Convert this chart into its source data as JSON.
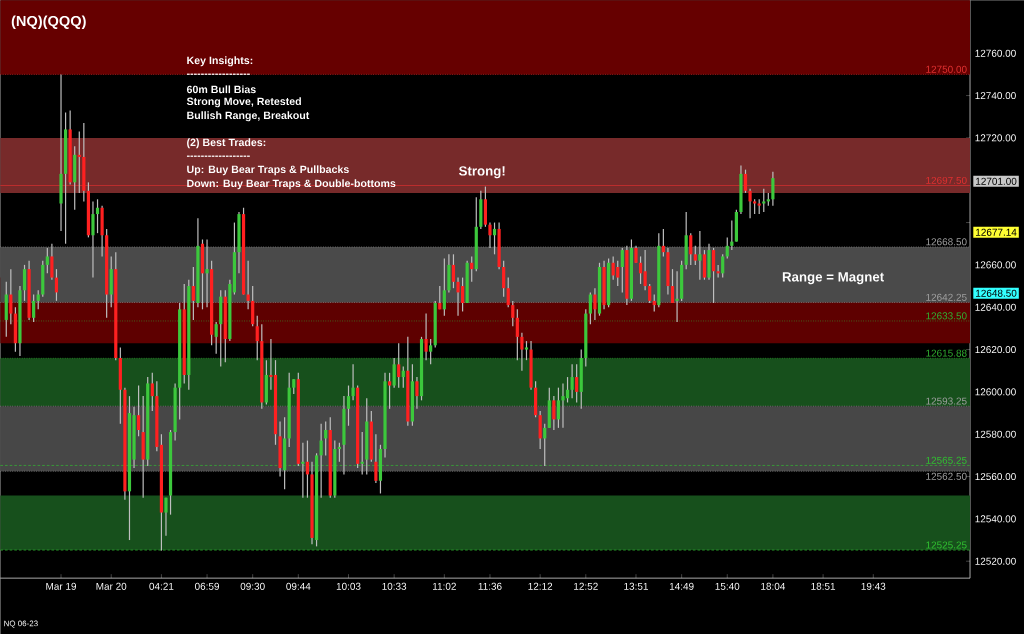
{
  "chart_data": {
    "type": "candlestick",
    "title": "(NQ)(QQQ)",
    "categories": [
      null,
      null,
      null,
      null,
      null,
      null,
      null,
      null,
      null,
      null,
      null,
      null,
      "Mar 19",
      null,
      null,
      null,
      null,
      null,
      null,
      null,
      null,
      null,
      null,
      "Mar 20",
      null,
      null,
      null,
      null,
      null,
      null,
      null,
      null,
      null,
      null,
      "04:21",
      null,
      null,
      null,
      null,
      null,
      null,
      null,
      null,
      null,
      "06:59",
      null,
      null,
      null,
      null,
      null,
      null,
      null,
      null,
      null,
      "09:30",
      null,
      null,
      null,
      null,
      null,
      null,
      null,
      null,
      null,
      "09:44",
      null,
      null,
      null,
      null,
      null,
      null,
      null,
      null,
      null,
      null,
      "10:03",
      null,
      null,
      null,
      null,
      null,
      null,
      null,
      null,
      null,
      "10:33",
      null,
      null,
      null,
      null,
      null,
      null,
      null,
      null,
      null,
      null,
      "11:02",
      null,
      null,
      null,
      null,
      null,
      null,
      null,
      null,
      null,
      "11:36",
      null,
      null,
      null,
      null,
      null,
      null,
      null,
      null,
      null,
      null,
      "12:12",
      null,
      null,
      null,
      null,
      null,
      null,
      null,
      null,
      null,
      "12:52",
      null,
      null,
      null,
      null,
      null,
      null,
      null,
      null,
      null,
      null,
      "13:51",
      null,
      null,
      null,
      null,
      null,
      null,
      null,
      null,
      null,
      "14:49",
      null,
      null,
      null,
      null,
      null,
      null,
      null,
      null,
      null,
      "15:40",
      null,
      null,
      null,
      null,
      null,
      null,
      null,
      null,
      null,
      "18:04",
      null,
      null,
      null,
      null,
      null,
      null,
      null,
      null,
      null,
      null,
      "18:51",
      null,
      null,
      null,
      null,
      null,
      null,
      null,
      null,
      null,
      null,
      "19:43",
      null,
      null,
      null,
      null,
      null,
      null,
      null,
      null,
      null,
      null,
      null,
      null,
      null,
      null,
      null,
      null,
      null,
      null,
      null,
      null,
      null
    ],
    "ohlc": [
      [
        12634,
        12652,
        12626,
        12646
      ],
      [
        12646,
        12658,
        12632,
        12637
      ],
      [
        12637,
        12640,
        12619,
        12623
      ],
      [
        12623,
        12650,
        12617,
        12648
      ],
      [
        12648,
        12660,
        12643,
        12658
      ],
      [
        12658,
        12662,
        12634,
        12635
      ],
      [
        12635,
        12646,
        12633,
        12643
      ],
      [
        12643,
        12648,
        12639,
        12646
      ],
      [
        12646,
        12662,
        12645,
        12660
      ],
      [
        12660,
        12668,
        12656,
        12664
      ],
      [
        12664,
        12670,
        12653,
        12654
      ],
      [
        12654,
        12658,
        12643,
        12647
      ],
      [
        12689,
        12750,
        12676,
        12703
      ],
      [
        12703,
        12732,
        12670,
        12724
      ],
      [
        12724,
        12733,
        12698,
        12699
      ],
      [
        12699,
        12716,
        12686,
        12712
      ],
      [
        12712,
        12723,
        12694,
        12711
      ],
      [
        12711,
        12727,
        12690,
        12695
      ],
      [
        12695,
        12699,
        12673,
        12674
      ],
      [
        12674,
        12690,
        12654,
        12684
      ],
      [
        12684,
        12691,
        12675,
        12687
      ],
      [
        12687,
        12688,
        12664,
        12674
      ],
      [
        12674,
        12677,
        12635,
        12646
      ],
      [
        12646,
        12664,
        12640,
        12658
      ],
      [
        12658,
        12666,
        12615,
        12616
      ],
      [
        12616,
        12621,
        12585,
        12601
      ],
      [
        12601,
        12602,
        12549,
        12553
      ],
      [
        12553,
        12598,
        12530,
        12590
      ],
      [
        12568,
        12593,
        12564,
        12589
      ],
      [
        12589,
        12603,
        12579,
        12582
      ],
      [
        12581,
        12598,
        12550,
        12568
      ],
      [
        12568,
        12607,
        12565,
        12604
      ],
      [
        12604,
        12609,
        12591,
        12598
      ],
      [
        12598,
        12605,
        12572,
        12574
      ],
      [
        12575,
        12580,
        12525,
        12543
      ],
      [
        12543,
        12550,
        12532,
        12550
      ],
      [
        12551,
        12582,
        12542,
        12581
      ],
      [
        12581,
        12604,
        12577,
        12602
      ],
      [
        12602,
        12642,
        12587,
        12639
      ],
      [
        12639,
        12651,
        12604,
        12608
      ],
      [
        12608,
        12653,
        12601,
        12650
      ],
      [
        12650,
        12659,
        12634,
        12643
      ],
      [
        12642,
        12682,
        12640,
        12669
      ],
      [
        12670,
        12672,
        12639,
        12656
      ],
      [
        12656,
        12672,
        12640,
        12658
      ],
      [
        12658,
        12662,
        12622,
        12627
      ],
      [
        12626,
        12633,
        12618,
        12632
      ],
      [
        12632,
        12648,
        12612,
        12645
      ],
      [
        12645,
        12648,
        12614,
        12625
      ],
      [
        12625,
        12653,
        12624,
        12651
      ],
      [
        12647,
        12680,
        12646,
        12666
      ],
      [
        12666,
        12685,
        12656,
        12684
      ],
      [
        12684,
        12687,
        12646,
        12646
      ],
      [
        12646,
        12662,
        12639,
        12643
      ],
      [
        12643,
        12650,
        12631,
        12632
      ],
      [
        12631,
        12636,
        12615,
        12624
      ],
      [
        12624,
        12632,
        12592,
        12595
      ],
      [
        12595,
        12615,
        12594,
        12608
      ],
      [
        12608,
        12625,
        12601,
        12607
      ],
      [
        12608,
        12615,
        12575,
        12580
      ],
      [
        12579,
        12586,
        12560,
        12564
      ],
      [
        12563,
        12588,
        12554,
        12578
      ],
      [
        12578,
        12609,
        12574,
        12602
      ],
      [
        12602,
        12606,
        12599,
        12606
      ],
      [
        12606,
        12609,
        12565,
        12566
      ],
      [
        12566,
        12576,
        12550,
        12567
      ],
      [
        12567,
        12577,
        12550,
        12561
      ],
      [
        12561,
        12567,
        12528,
        12531
      ],
      [
        12530,
        12571,
        12527,
        12570
      ],
      [
        12570,
        12585,
        12550,
        12577
      ],
      [
        12578,
        12586,
        12570,
        12582
      ],
      [
        12582,
        12588,
        12550,
        12551
      ],
      [
        12551,
        12577,
        12550,
        12573
      ],
      [
        12573,
        12576,
        12567,
        12574
      ],
      [
        12575,
        12598,
        12561,
        12592
      ],
      [
        12592,
        12603,
        12584,
        12598
      ],
      [
        12598,
        12613,
        12596,
        12602
      ],
      [
        12602,
        12603,
        12564,
        12566
      ],
      [
        12566,
        12581,
        12561,
        12567
      ],
      [
        12568,
        12597,
        12561,
        12586
      ],
      [
        12586,
        12591,
        12567,
        12568
      ],
      [
        12567,
        12580,
        12557,
        12558
      ],
      [
        12558,
        12575,
        12552,
        12573
      ],
      [
        12573,
        12609,
        12569,
        12605
      ],
      [
        12605,
        12609,
        12592,
        12603
      ],
      [
        12603,
        12616,
        12602,
        12613
      ],
      [
        12613,
        12623,
        12602,
        12607
      ],
      [
        12607,
        12612,
        12602,
        12610
      ],
      [
        12610,
        12626,
        12584,
        12586
      ],
      [
        12586,
        12613,
        12584,
        12605
      ],
      [
        12605,
        12607,
        12592,
        12598
      ],
      [
        12598,
        12626,
        12596,
        12625
      ],
      [
        12625,
        12637,
        12615,
        12619
      ],
      [
        12619,
        12625,
        12613,
        12622
      ],
      [
        12622,
        12643,
        12621,
        12642
      ],
      [
        12642,
        12650,
        12639,
        12639
      ],
      [
        12639,
        12663,
        12636,
        12648
      ],
      [
        12648,
        12665,
        12647,
        12660
      ],
      [
        12660,
        12665,
        12649,
        12652
      ],
      [
        12652,
        12654,
        12636,
        12647
      ],
      [
        12650,
        12654,
        12638,
        12642
      ],
      [
        12642,
        12662,
        12642,
        12661
      ],
      [
        12661,
        12664,
        12652,
        12658
      ],
      [
        12658,
        12692,
        12657,
        12678
      ],
      [
        12678,
        12695,
        12677,
        12691
      ],
      [
        12691,
        12697,
        12678,
        12679
      ],
      [
        12679,
        12680,
        12668,
        12674
      ],
      [
        12674,
        12680,
        12665,
        12677
      ],
      [
        12677,
        12680,
        12658,
        12659
      ],
      [
        12659,
        12662,
        12645,
        12649
      ],
      [
        12649,
        12654,
        12640,
        12641
      ],
      [
        12641,
        12643,
        12631,
        12635
      ],
      [
        12635,
        12639,
        12615,
        12626
      ],
      [
        12626,
        12628,
        12610,
        12620
      ],
      [
        12620,
        12624,
        12615,
        12621
      ],
      [
        12620,
        12624,
        12601,
        12602
      ],
      [
        12602,
        12605,
        12588,
        12589
      ],
      [
        12589,
        12591,
        12573,
        12578
      ],
      [
        12578,
        12585,
        12565,
        12583
      ],
      [
        12583,
        12602,
        12583,
        12596
      ],
      [
        12596,
        12598,
        12582,
        12587
      ],
      [
        12587,
        12602,
        12583,
        12596
      ],
      [
        12596,
        12604,
        12583,
        12598
      ],
      [
        12597,
        12607,
        12595,
        12601
      ],
      [
        12601,
        12613,
        12597,
        12607
      ],
      [
        12607,
        12613,
        12595,
        12600
      ],
      [
        12600,
        12620,
        12592,
        12616
      ],
      [
        12616,
        12639,
        12612,
        12637
      ],
      [
        12637,
        12647,
        12632,
        12646
      ],
      [
        12646,
        12649,
        12634,
        12639
      ],
      [
        12637,
        12661,
        12636,
        12659
      ],
      [
        12659,
        12662,
        12639,
        12641
      ],
      [
        12641,
        12663,
        12640,
        12661
      ],
      [
        12661,
        12664,
        12653,
        12655
      ],
      [
        12659,
        12662,
        12650,
        12654
      ],
      [
        12659,
        12668,
        12647,
        12667
      ],
      [
        12667,
        12669,
        12641,
        12644
      ],
      [
        12644,
        12672,
        12643,
        12668
      ],
      [
        12668,
        12669,
        12661,
        12661
      ],
      [
        12661,
        12664,
        12651,
        12656
      ],
      [
        12657,
        12667,
        12648,
        12650
      ],
      [
        12650,
        12651,
        12642,
        12643
      ],
      [
        12643,
        12646,
        12638,
        12641
      ],
      [
        12641,
        12675,
        12640,
        12669
      ],
      [
        12669,
        12677,
        12664,
        12666
      ],
      [
        12666,
        12668,
        12646,
        12650
      ],
      [
        12650,
        12658,
        12642,
        12642
      ],
      [
        12643,
        12657,
        12633,
        12644
      ],
      [
        12644,
        12662,
        12643,
        12660
      ],
      [
        12660,
        12685,
        12658,
        12674
      ],
      [
        12674,
        12675,
        12660,
        12665
      ],
      [
        12665,
        12669,
        12660,
        12662
      ],
      [
        12662,
        12676,
        12653,
        12665
      ],
      [
        12665,
        12667,
        12653,
        12654
      ],
      [
        12654,
        12670,
        12653,
        12667
      ],
      [
        12667,
        12668,
        12642,
        12657
      ],
      [
        12657,
        12660,
        12654,
        12656
      ],
      [
        12656,
        12665,
        12654,
        12664
      ],
      [
        12664,
        12673,
        12663,
        12669
      ],
      [
        12669,
        12681,
        12667,
        12671
      ],
      [
        12671,
        12686,
        12671,
        12685
      ],
      [
        12685,
        12707,
        12684,
        12703
      ],
      [
        12703,
        12705,
        12694,
        12695
      ],
      [
        12695,
        12696,
        12682,
        12690
      ],
      [
        12690,
        12691,
        12684,
        12689
      ],
      [
        12689,
        12691,
        12684,
        12688
      ],
      [
        12689,
        12696,
        12685,
        12690
      ],
      [
        12690,
        12694,
        12688,
        12691
      ],
      [
        12691,
        12704,
        12688,
        12701
      ],
      null,
      null,
      null,
      null,
      null,
      null,
      null,
      null,
      null,
      null,
      null,
      null,
      null,
      null,
      null,
      null,
      null,
      null,
      null,
      null,
      null,
      null,
      null,
      null,
      null,
      null,
      null,
      null,
      null,
      null,
      null,
      null,
      null,
      null,
      null,
      null,
      null,
      null,
      null,
      null,
      null,
      null,
      null
    ],
    "ylim": [
      12512,
      12785
    ],
    "yticks": [
      {
        "value": 12520,
        "label": "12520.00"
      },
      {
        "value": 12540,
        "label": "12540.00"
      },
      {
        "value": 12560,
        "label": "12560.00"
      },
      {
        "value": 12580,
        "label": "12580.00"
      },
      {
        "value": 12600,
        "label": "12600.00"
      },
      {
        "value": 12620,
        "label": "12620.00"
      },
      {
        "value": 12640,
        "label": "12640.00"
      },
      {
        "value": 12660,
        "label": "12660.00"
      },
      {
        "value": 12680,
        "label": null
      },
      {
        "value": 12700,
        "label": null
      },
      {
        "value": 12720,
        "label": "12720.00"
      },
      {
        "value": 12740,
        "label": "12740.00"
      },
      {
        "value": 12760,
        "label": "12760.00"
      }
    ],
    "bands": [
      {
        "axis": "y",
        "from": 12750,
        "to": 12785,
        "color": "#660000"
      },
      {
        "axis": "y",
        "from": 12694,
        "to": 12720,
        "color": "#772a2a"
      },
      {
        "axis": "y",
        "from": 12623,
        "to": 12654,
        "color": "#5e0000"
      },
      {
        "axis": "y",
        "from": 12642.25,
        "to": 12668.5,
        "color": "#4a4a4a"
      },
      {
        "axis": "y",
        "from": 12593.25,
        "to": 12615.88,
        "color": "#17501c"
      },
      {
        "axis": "y",
        "from": 12562.5,
        "to": 12593.25,
        "color": "#474747"
      },
      {
        "axis": "y",
        "from": 12525.25,
        "to": 12551,
        "color": "#17501c"
      }
    ],
    "ref_lines": [
      {
        "axis": "y",
        "value": 12750,
        "label": "12750.00",
        "color": "#e03030",
        "line_style": "dotted"
      },
      {
        "axis": "y",
        "value": 12697.5,
        "label": "12697.50",
        "color": "#e03030",
        "line_style": "solid"
      },
      {
        "axis": "y",
        "value": 12668.5,
        "label": "12668.50",
        "color": "#a0a0a0",
        "line_style": "dotted"
      },
      {
        "axis": "y",
        "value": 12642.25,
        "label": "12642.25",
        "color": "#a0a0a0",
        "line_style": "dotted"
      },
      {
        "axis": "y",
        "value": 12633.5,
        "label": "12633.50",
        "color": "#30b030",
        "line_style": "dotted"
      },
      {
        "axis": "y",
        "value": 12615.88,
        "label": "12615.88",
        "color": "#30b030",
        "line_style": "dotted"
      },
      {
        "axis": "y",
        "value": 12593.25,
        "label": "12593.25",
        "color": "#a0a0a0",
        "line_style": "dotted"
      },
      {
        "axis": "y",
        "value": 12565.25,
        "label": "12565.25",
        "color": "#30c030",
        "line_style": "dashed"
      },
      {
        "axis": "y",
        "value": 12562.5,
        "label": "12562.50",
        "color": "#a0a0a0",
        "line_style": "dotted"
      },
      {
        "axis": "y",
        "value": 12525.25,
        "label": "12525.25",
        "color": "#30c030",
        "line_style": "dashed"
      }
    ],
    "annotations": [
      "Key Insights:",
      "------------------",
      "60m Bull Bias",
      "Strong Move, Retested",
      "Bullish Range, Breakout",
      "(2) Best Trades:",
      "------------------",
      "Up: Buy Bear Traps & Pullbacks",
      "Down: Buy Bear Traps & Double-bottoms",
      "Strong!",
      "Range = Magnet",
      "NQ 06-23",
      "12701.00",
      "12677.14",
      "12648.50"
    ]
  }
}
